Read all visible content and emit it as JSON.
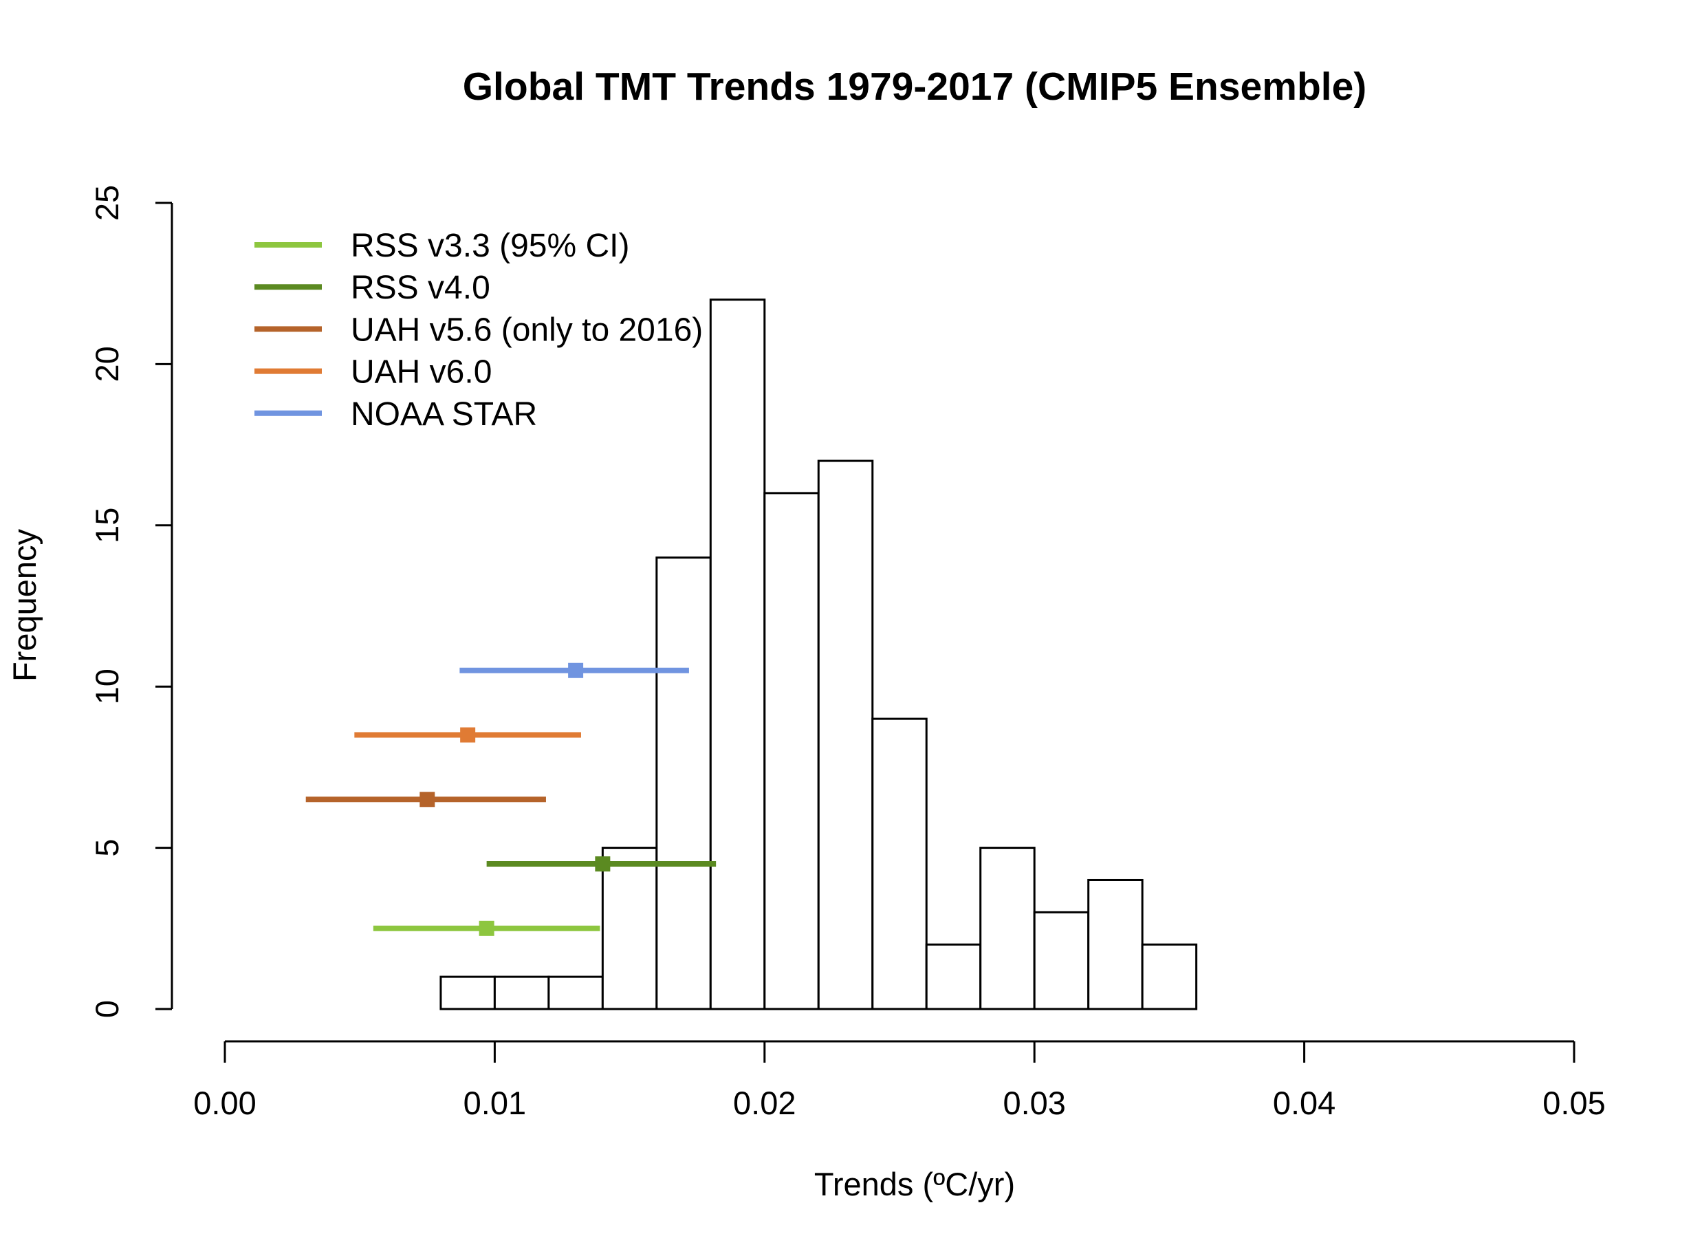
{
  "chart_data": {
    "type": "bar",
    "title": "Global TMT Trends 1979-2017 (CMIP5 Ensemble)",
    "xlabel": "Trends (ºC/yr)",
    "ylabel": "Frequency",
    "xlim": [
      0,
      0.05
    ],
    "ylim": [
      0,
      25
    ],
    "x_ticks": [
      "0.00",
      "0.01",
      "0.02",
      "0.03",
      "0.04",
      "0.05"
    ],
    "y_ticks": [
      "0",
      "5",
      "10",
      "15",
      "20",
      "25"
    ],
    "histogram": {
      "bins": [
        {
          "x0": 0.008,
          "x1": 0.01,
          "count": 1
        },
        {
          "x0": 0.01,
          "x1": 0.012,
          "count": 1
        },
        {
          "x0": 0.012,
          "x1": 0.014,
          "count": 1
        },
        {
          "x0": 0.014,
          "x1": 0.016,
          "count": 5
        },
        {
          "x0": 0.016,
          "x1": 0.018,
          "count": 14
        },
        {
          "x0": 0.018,
          "x1": 0.02,
          "count": 22
        },
        {
          "x0": 0.02,
          "x1": 0.022,
          "count": 16
        },
        {
          "x0": 0.022,
          "x1": 0.024,
          "count": 17
        },
        {
          "x0": 0.024,
          "x1": 0.026,
          "count": 9
        },
        {
          "x0": 0.026,
          "x1": 0.028,
          "count": 2
        },
        {
          "x0": 0.028,
          "x1": 0.03,
          "count": 5
        },
        {
          "x0": 0.03,
          "x1": 0.032,
          "count": 3
        },
        {
          "x0": 0.032,
          "x1": 0.034,
          "count": 4
        },
        {
          "x0": 0.034,
          "x1": 0.036,
          "count": 2
        }
      ]
    },
    "series": [
      {
        "name": "RSS v3.3 (95% CI)",
        "color": "#8dc63f",
        "trend": 0.0097,
        "ci": [
          0.0055,
          0.0139
        ],
        "y": 2.5
      },
      {
        "name": "RSS v4.0",
        "color": "#5b8a21",
        "trend": 0.014,
        "ci": [
          0.0097,
          0.0182
        ],
        "y": 4.5
      },
      {
        "name": "UAH v5.6 (only to 2016)",
        "color": "#b5632a",
        "trend": 0.0075,
        "ci": [
          0.003,
          0.0119
        ],
        "y": 6.5
      },
      {
        "name": "UAH v6.0",
        "color": "#e07b34",
        "trend": 0.009,
        "ci": [
          0.0048,
          0.0132
        ],
        "y": 8.5
      },
      {
        "name": "NOAA STAR",
        "color": "#7094e0",
        "trend": 0.013,
        "ci": [
          0.0087,
          0.0172
        ],
        "y": 10.5
      }
    ],
    "legend_position": "top-left",
    "grid": false
  }
}
